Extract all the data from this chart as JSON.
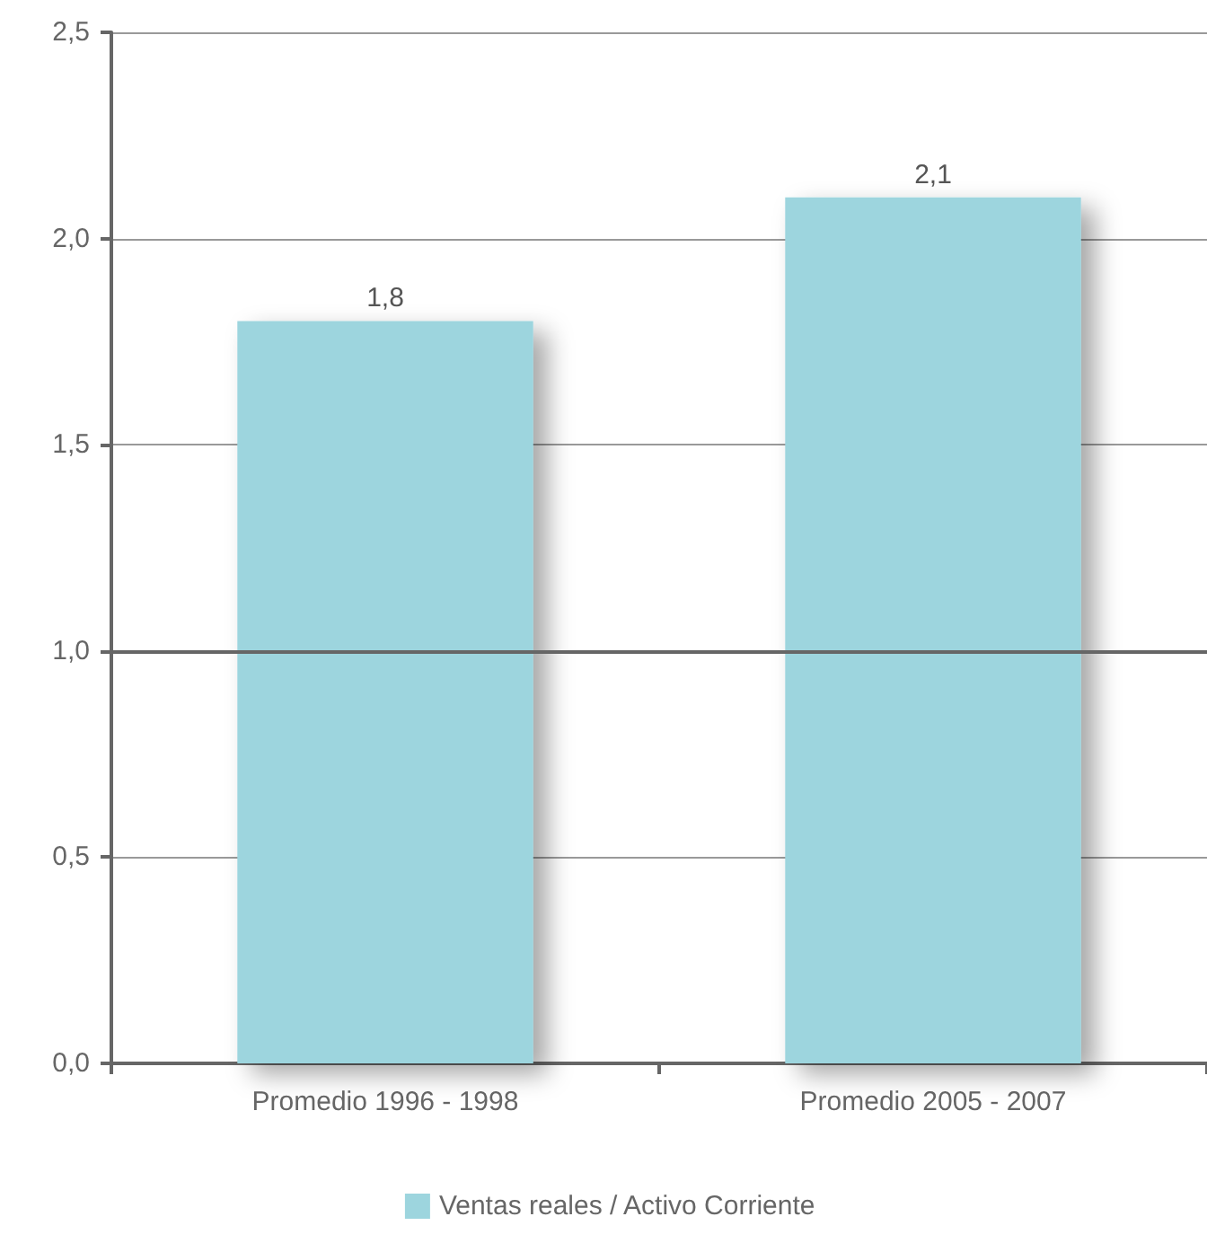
{
  "chart_data": {
    "type": "bar",
    "categories": [
      "Promedio 1996 - 1998",
      "Promedio 2005 - 2007"
    ],
    "series": [
      {
        "name": "Ventas reales / Activo Corriente",
        "color": "#9dd5de",
        "values": [
          1.8,
          2.1
        ],
        "value_labels": [
          "1,8",
          "2,1"
        ]
      }
    ],
    "ylim": [
      0,
      2.5
    ],
    "yticks": [
      {
        "value": 0,
        "label": "0,0"
      },
      {
        "value": 0.5,
        "label": "0,5"
      },
      {
        "value": 1,
        "label": "1,0"
      },
      {
        "value": 1.5,
        "label": "1,5"
      },
      {
        "value": 2,
        "label": "2,0"
      },
      {
        "value": 2.5,
        "label": "2,5"
      }
    ],
    "ref_lines": [
      {
        "axis": "y",
        "value": 1,
        "color": "#666666"
      }
    ],
    "grid": "y",
    "legend": "bottom"
  }
}
